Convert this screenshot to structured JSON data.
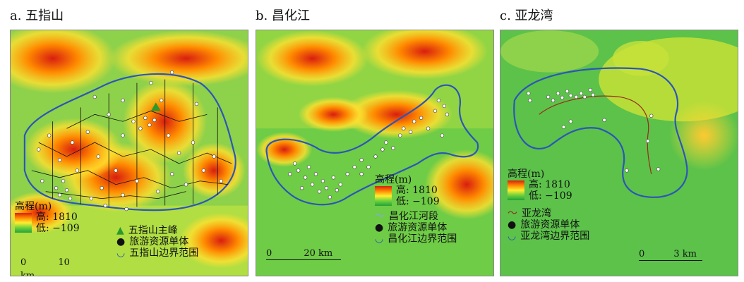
{
  "panels": [
    {
      "title": "a. 五指山",
      "legend": {
        "elevation_title": "高程(m)",
        "high": "高: 1810",
        "low": "低: −109",
        "peak": "五指山主峰",
        "points": "旅游资源单体",
        "boundary": "五指山边界范围"
      },
      "scale": {
        "zero": "0",
        "dist": "10 km"
      }
    },
    {
      "title": "b. 昌化江",
      "legend": {
        "elevation_title": "高程(m)",
        "high": "高: 1810",
        "low": "低: −109",
        "river": "昌化江河段",
        "points": "旅游资源单体",
        "boundary": "昌化江边界范围"
      },
      "scale": {
        "zero": "0",
        "dist": "20 km"
      }
    },
    {
      "title": "c. 亚龙湾",
      "legend": {
        "elevation_title": "高程(m)",
        "high": "高: 1810",
        "low": "低: −109",
        "river": "亚龙湾",
        "points": "旅游资源单体",
        "boundary": "亚龙湾边界范围"
      },
      "scale": {
        "zero": "0",
        "dist": "3 km"
      }
    }
  ],
  "colors": {
    "high": "#d81e10",
    "mid": "#ffee30",
    "low": "#23a23a",
    "boundary": "#2c55b8",
    "river": "#9a2a1a",
    "peak": "#2a9a2a"
  }
}
